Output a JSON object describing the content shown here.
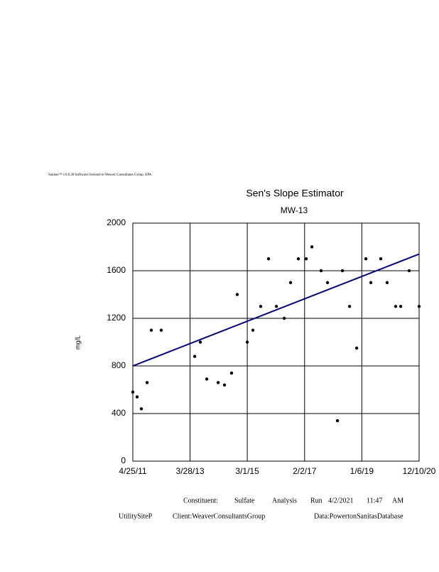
{
  "header": {
    "license": "Sanitas™ v.9.6.28 Software licensed to Weaver Consultants Group. EPA"
  },
  "chart_data": {
    "type": "scatter",
    "title": "Sen's Slope Estimator",
    "subtitle": "MW-13",
    "y_label": "mg/L",
    "color": "#000000",
    "grid": true,
    "x": [
      "2011-04-25",
      "2011-06-16",
      "2011-08-08",
      "2011-10-17",
      "2011-12-08",
      "2012-04-08",
      "2013-05-24",
      "2013-08-01",
      "2013-10-19",
      "2014-03-08",
      "2014-05-25",
      "2014-08-20",
      "2014-10-29",
      "2015-03-01",
      "2015-05-09",
      "2015-08-13",
      "2015-11-17",
      "2016-02-22",
      "2016-05-28",
      "2016-08-14",
      "2016-11-18",
      "2017-02-22",
      "2017-05-03",
      "2017-08-24",
      "2017-11-11",
      "2018-03-13",
      "2018-05-13",
      "2018-08-09",
      "2018-11-04",
      "2019-02-25",
      "2019-04-27",
      "2019-08-27",
      "2019-11-13",
      "2020-02-26",
      "2020-04-28",
      "2020-08-10",
      "2020-12-10"
    ],
    "values": [
      580,
      540,
      440,
      660,
      1100,
      1100,
      880,
      1000,
      690,
      660,
      640,
      740,
      1400,
      1000,
      1100,
      1300,
      1700,
      1300,
      1200,
      1500,
      1700,
      1700,
      1800,
      1600,
      1500,
      340,
      1600,
      1300,
      950,
      1700,
      1500,
      1700,
      1500,
      1300,
      1300,
      1600,
      1300
    ],
    "trend": {
      "x": [
        "2011-04-25",
        "2020-12-10"
      ],
      "values": [
        800,
        1740
      ],
      "color": "#000080"
    },
    "xlim": [
      "2011-04-25",
      "2020-12-10"
    ],
    "xticks": [
      {
        "value": "2011-04-25",
        "label": "4/25/11"
      },
      {
        "value": "2013-03-28",
        "label": "3/28/13"
      },
      {
        "value": "2015-03-01",
        "label": "3/1/15"
      },
      {
        "value": "2017-02-02",
        "label": "2/2/17"
      },
      {
        "value": "2019-01-06",
        "label": "1/6/19"
      },
      {
        "value": "2020-12-10",
        "label": "12/10/20"
      }
    ],
    "ylim": [
      0,
      2000
    ],
    "yticks": [
      0,
      400,
      800,
      1200,
      1600,
      2000
    ]
  },
  "footer": {
    "line1": [
      "Constituent:",
      "Sulfate",
      "Analysis",
      "Run",
      "4/2/2021",
      "11:47",
      "AM"
    ],
    "line2": [
      "UtilitySiteP",
      "Client:WeaverConsultantsGroup",
      "Data:PowertonSanitasDatabase"
    ]
  }
}
